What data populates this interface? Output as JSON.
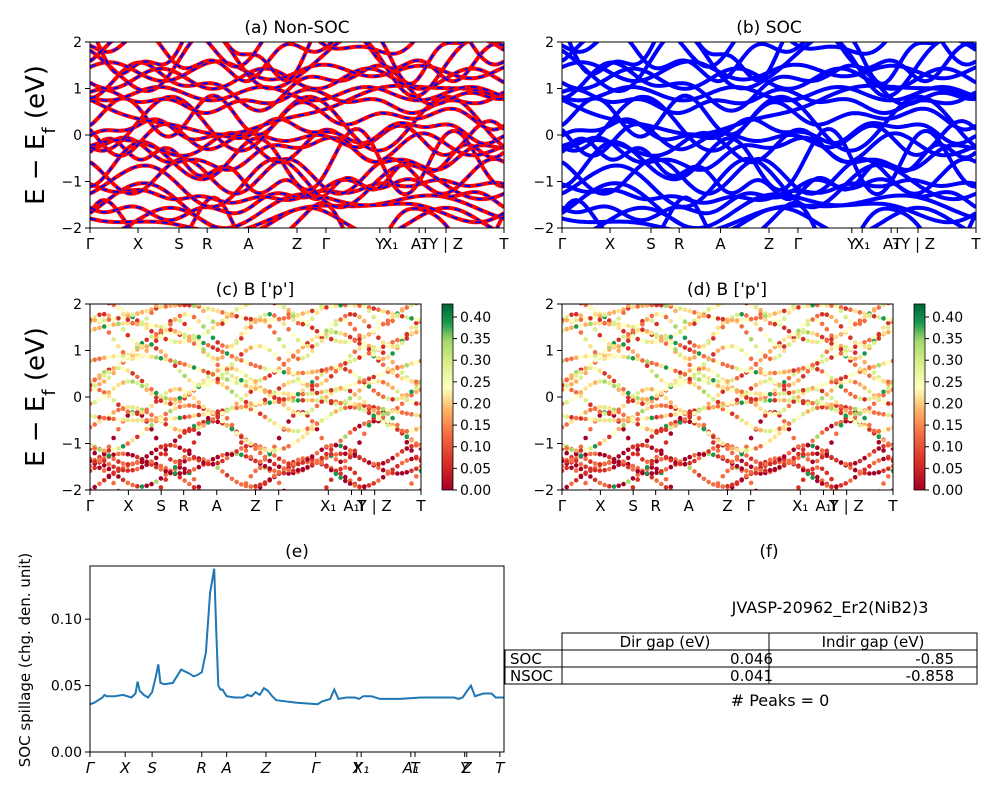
{
  "chart_data": [
    {
      "id": "a",
      "type": "line",
      "title": "(a) Non-SOC",
      "ylabel": "E − E_f (eV)",
      "ylim": [
        -2,
        2
      ],
      "yticks": [
        "2",
        "1",
        "0",
        "−1",
        "−2"
      ],
      "xticks": [
        "Γ",
        "X",
        "S",
        "R",
        "A",
        "Z",
        "Γ",
        "Y",
        "X₁",
        "A₁",
        "T",
        "Y | Z",
        "T"
      ],
      "colors": [
        "#ff0000",
        "#0000ff"
      ],
      "note": "band structure, red solid with blue dashed overlay"
    },
    {
      "id": "b",
      "type": "line",
      "title": "(b) SOC",
      "ylim": [
        -2,
        2
      ],
      "yticks": [
        "2",
        "1",
        "0",
        "−1",
        "−2"
      ],
      "xticks": [
        "Γ",
        "X",
        "S",
        "R",
        "A",
        "Z",
        "Γ",
        "Y",
        "X₁",
        "A₁",
        "T",
        "Y | Z",
        "T"
      ],
      "colors": [
        "#0000ff"
      ]
    },
    {
      "id": "c",
      "type": "scatter",
      "title": "(c)  B ['p']",
      "ylabel": "E − E_f (eV)",
      "ylim": [
        -2,
        2
      ],
      "yticks": [
        "2",
        "1",
        "0",
        "−1",
        "−2"
      ],
      "xticks": [
        "Γ",
        "X",
        "S",
        "R",
        "A",
        "Z",
        "Γ",
        "X₁",
        "A₁",
        "T",
        "Y | Z",
        "T"
      ],
      "colorbar": [
        "0.40",
        "0.35",
        "0.30",
        "0.25",
        "0.20",
        "0.15",
        "0.10",
        "0.05",
        "0.00"
      ],
      "colormap": "RdYlGn"
    },
    {
      "id": "d",
      "type": "scatter",
      "title": "(d) B ['p']",
      "ylim": [
        -2,
        2
      ],
      "yticks": [
        "2",
        "1",
        "0",
        "−1",
        "−2"
      ],
      "xticks": [
        "Γ",
        "X",
        "S",
        "R",
        "A",
        "Z",
        "Γ",
        "X₁",
        "A₁",
        "T",
        "Y | Z",
        "T"
      ],
      "colorbar": [
        "0.40",
        "0.35",
        "0.30",
        "0.25",
        "0.20",
        "0.15",
        "0.10",
        "0.05",
        "0.00"
      ],
      "colormap": "RdYlGn"
    },
    {
      "id": "e",
      "type": "line",
      "title": "(e)",
      "ylabel": "SOC spillage (chg. den. unit)",
      "ylim": [
        0,
        0.14
      ],
      "yticks": [
        "0.00",
        "0.05",
        "0.10"
      ],
      "xticks": [
        "Γ",
        "X",
        "S",
        "R",
        "A",
        "Z",
        "Γ",
        "Y",
        "X₁",
        "A₁",
        "T",
        "Y",
        "Z",
        "T"
      ],
      "color": "#1f77b4",
      "series": [
        {
          "x": [
            0,
            0.01,
            0.02,
            0.03,
            0.035,
            0.04,
            0.06,
            0.08,
            0.1,
            0.11,
            0.115,
            0.12,
            0.13,
            0.14,
            0.15,
            0.16,
            0.165,
            0.17,
            0.18,
            0.2,
            0.22,
            0.24,
            0.25,
            0.26,
            0.27,
            0.28,
            0.29,
            0.3,
            0.305,
            0.31,
            0.315,
            0.32,
            0.33,
            0.35,
            0.37,
            0.38,
            0.39,
            0.4,
            0.41,
            0.42,
            0.43,
            0.44,
            0.45,
            0.5,
            0.55,
            0.56,
            0.58,
            0.59,
            0.6,
            0.62,
            0.63,
            0.64,
            0.65,
            0.66,
            0.68,
            0.7,
            0.75,
            0.8,
            0.85,
            0.88,
            0.89,
            0.9,
            0.92,
            0.93,
            0.95,
            0.97,
            0.98,
            1.0
          ],
          "y": [
            0.036,
            0.037,
            0.039,
            0.041,
            0.043,
            0.042,
            0.042,
            0.043,
            0.041,
            0.044,
            0.053,
            0.046,
            0.043,
            0.041,
            0.045,
            0.058,
            0.066,
            0.052,
            0.051,
            0.052,
            0.062,
            0.059,
            0.057,
            0.058,
            0.06,
            0.075,
            0.12,
            0.138,
            0.09,
            0.05,
            0.047,
            0.047,
            0.042,
            0.041,
            0.041,
            0.043,
            0.042,
            0.045,
            0.043,
            0.048,
            0.046,
            0.042,
            0.039,
            0.037,
            0.036,
            0.038,
            0.04,
            0.047,
            0.04,
            0.041,
            0.041,
            0.041,
            0.04,
            0.042,
            0.042,
            0.04,
            0.04,
            0.041,
            0.041,
            0.041,
            0.04,
            0.041,
            0.05,
            0.042,
            0.044,
            0.044,
            0.041,
            0.041
          ]
        }
      ]
    }
  ],
  "panel_f": {
    "title": "(f)",
    "material": "JVASP-20962_Er2(NiB2)3",
    "columns": [
      "Dir gap (eV)",
      "Indir gap (eV)"
    ],
    "rows": [
      {
        "label": "SOC",
        "dir": "0.046",
        "indir": "-0.85"
      },
      {
        "label": "NSOC",
        "dir": "0.041",
        "indir": "-0.858"
      }
    ],
    "peaks": "# Peaks = 0"
  }
}
